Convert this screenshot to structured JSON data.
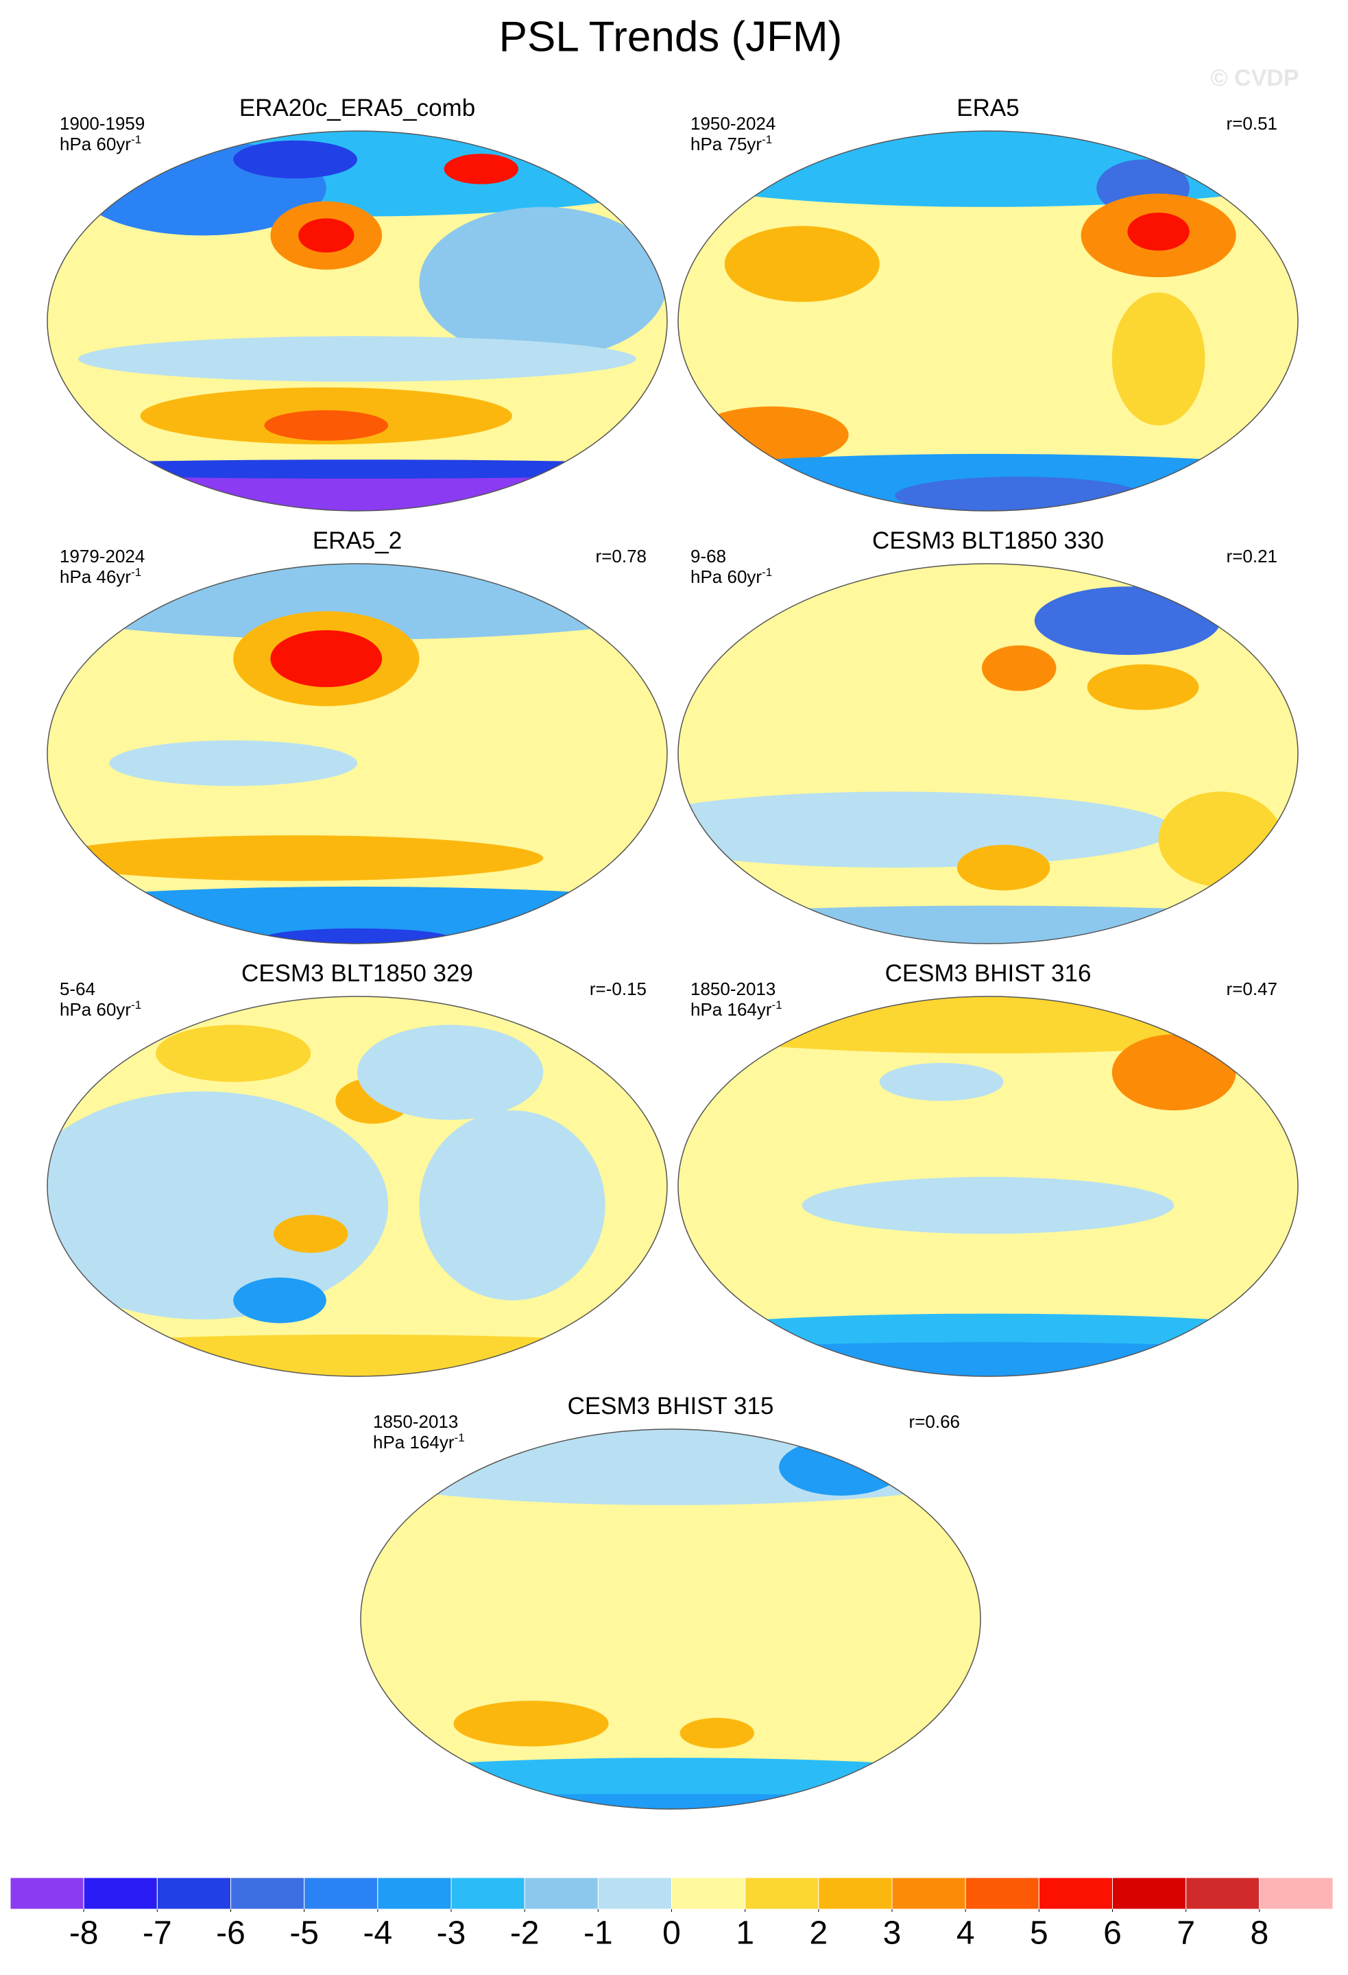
{
  "title": "PSL Trends (JFM)",
  "watermark": "© CVDP",
  "panels": [
    {
      "title": "ERA20c_ERA5_comb",
      "period": "1900-1959",
      "units": {
        "text": "hPa 60yr",
        "sup": "-1"
      }
    },
    {
      "title": "ERA5",
      "period": "1950-2024",
      "units": {
        "text": "hPa 75yr",
        "sup": "-1"
      },
      "r": "r=0.51"
    },
    {
      "title": "ERA5_2",
      "period": "1979-2024",
      "units": {
        "text": "hPa 46yr",
        "sup": "-1"
      },
      "r": "r=0.78"
    },
    {
      "title": "CESM3 BLT1850 330",
      "period": "9-68",
      "units": {
        "text": "hPa 60yr",
        "sup": "-1"
      },
      "r": "r=0.21"
    },
    {
      "title": "CESM3 BLT1850 329",
      "period": "5-64",
      "units": {
        "text": "hPa 60yr",
        "sup": "-1"
      },
      "r": "r=-0.15"
    },
    {
      "title": "CESM3 BHIST 316",
      "period": "1850-2013",
      "units": {
        "text": "hPa 164yr",
        "sup": "-1"
      },
      "r": "r=0.47"
    },
    {
      "title": "CESM3 BHIST 315",
      "period": "1850-2013",
      "units": {
        "text": "hPa 164yr",
        "sup": "-1"
      },
      "r": "r=0.66"
    }
  ],
  "colorbar": {
    "colors": [
      "#8b3bf2",
      "#2a1cf5",
      "#2140e6",
      "#3d6ee2",
      "#2b82f4",
      "#1e9cf6",
      "#2bbcf7",
      "#8cc8ed",
      "#b8e0f2",
      "#fff89c",
      "#fcd631",
      "#fcb70e",
      "#fc8c07",
      "#fc5a04",
      "#fc1000",
      "#d90000",
      "#d02a2a",
      "#feb4b4"
    ],
    "ticks": [
      -8,
      -7,
      -6,
      -5,
      -4,
      -3,
      -2,
      -1,
      0,
      1,
      2,
      3,
      4,
      5,
      6,
      7,
      8
    ]
  }
}
